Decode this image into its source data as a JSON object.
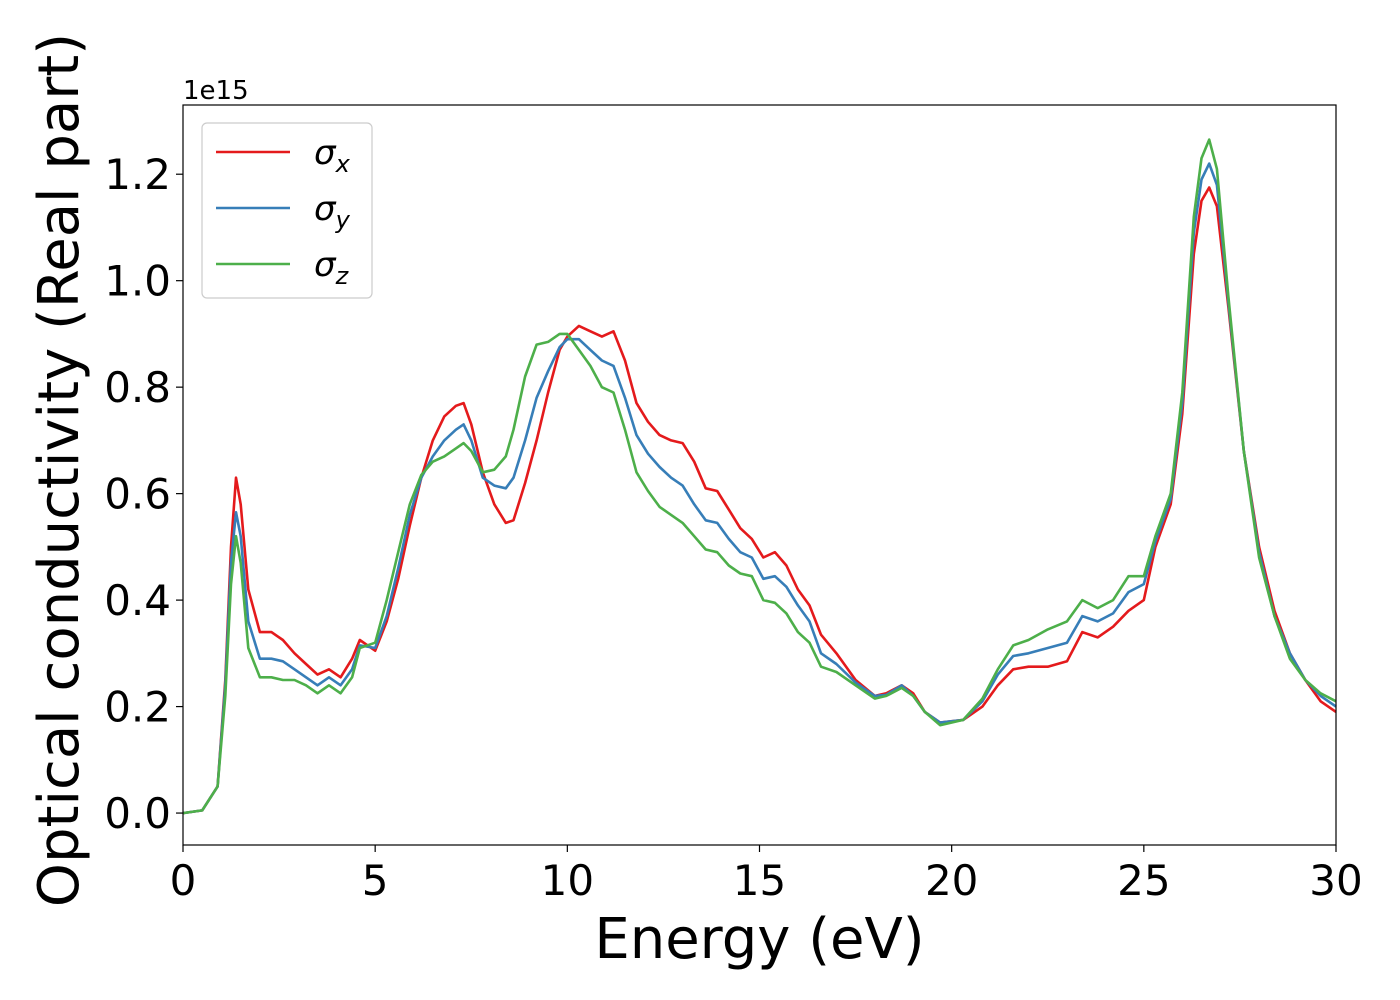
{
  "chart_data": {
    "type": "line",
    "xlabel": "Energy (eV)",
    "ylabel": "Optical conductivity (Real part)",
    "y_offset_label": "1e15",
    "xlim": [
      0,
      30
    ],
    "ylim": [
      -0.06,
      1.33
    ],
    "xticks": [
      0,
      5,
      10,
      15,
      20,
      25,
      30
    ],
    "yticks": [
      0.0,
      0.2,
      0.4,
      0.6,
      0.8,
      1.0,
      1.2
    ],
    "grid": false,
    "legend_position": "top-left",
    "series": [
      {
        "name": "σx",
        "color": "#e41a1c",
        "points": [
          [
            0,
            0
          ],
          [
            0.5,
            0.005
          ],
          [
            0.9,
            0.05
          ],
          [
            1.1,
            0.25
          ],
          [
            1.25,
            0.5
          ],
          [
            1.38,
            0.63
          ],
          [
            1.5,
            0.58
          ],
          [
            1.7,
            0.42
          ],
          [
            2.0,
            0.34
          ],
          [
            2.3,
            0.34
          ],
          [
            2.6,
            0.325
          ],
          [
            2.9,
            0.3
          ],
          [
            3.2,
            0.28
          ],
          [
            3.5,
            0.26
          ],
          [
            3.8,
            0.27
          ],
          [
            4.1,
            0.255
          ],
          [
            4.4,
            0.29
          ],
          [
            4.6,
            0.325
          ],
          [
            5.0,
            0.305
          ],
          [
            5.3,
            0.36
          ],
          [
            5.6,
            0.44
          ],
          [
            5.9,
            0.54
          ],
          [
            6.2,
            0.63
          ],
          [
            6.5,
            0.7
          ],
          [
            6.8,
            0.745
          ],
          [
            7.1,
            0.765
          ],
          [
            7.3,
            0.77
          ],
          [
            7.5,
            0.73
          ],
          [
            7.8,
            0.64
          ],
          [
            8.1,
            0.58
          ],
          [
            8.4,
            0.545
          ],
          [
            8.6,
            0.55
          ],
          [
            8.9,
            0.62
          ],
          [
            9.2,
            0.7
          ],
          [
            9.5,
            0.79
          ],
          [
            9.8,
            0.87
          ],
          [
            10.0,
            0.895
          ],
          [
            10.3,
            0.915
          ],
          [
            10.6,
            0.905
          ],
          [
            10.9,
            0.895
          ],
          [
            11.2,
            0.905
          ],
          [
            11.5,
            0.85
          ],
          [
            11.8,
            0.77
          ],
          [
            12.1,
            0.735
          ],
          [
            12.4,
            0.71
          ],
          [
            12.7,
            0.7
          ],
          [
            13.0,
            0.695
          ],
          [
            13.3,
            0.66
          ],
          [
            13.6,
            0.61
          ],
          [
            13.9,
            0.605
          ],
          [
            14.2,
            0.57
          ],
          [
            14.5,
            0.535
          ],
          [
            14.8,
            0.515
          ],
          [
            15.1,
            0.48
          ],
          [
            15.4,
            0.49
          ],
          [
            15.7,
            0.465
          ],
          [
            16.0,
            0.42
          ],
          [
            16.3,
            0.39
          ],
          [
            16.6,
            0.335
          ],
          [
            17.0,
            0.3
          ],
          [
            17.5,
            0.25
          ],
          [
            18.0,
            0.22
          ],
          [
            18.3,
            0.225
          ],
          [
            18.7,
            0.24
          ],
          [
            19.0,
            0.225
          ],
          [
            19.3,
            0.19
          ],
          [
            19.7,
            0.17
          ],
          [
            20.3,
            0.175
          ],
          [
            20.8,
            0.2
          ],
          [
            21.2,
            0.24
          ],
          [
            21.6,
            0.27
          ],
          [
            22.0,
            0.275
          ],
          [
            22.5,
            0.275
          ],
          [
            23.0,
            0.285
          ],
          [
            23.4,
            0.34
          ],
          [
            23.8,
            0.33
          ],
          [
            24.2,
            0.35
          ],
          [
            24.6,
            0.38
          ],
          [
            25.0,
            0.4
          ],
          [
            25.3,
            0.5
          ],
          [
            25.7,
            0.58
          ],
          [
            26.0,
            0.75
          ],
          [
            26.3,
            1.05
          ],
          [
            26.5,
            1.15
          ],
          [
            26.7,
            1.175
          ],
          [
            26.9,
            1.14
          ],
          [
            27.2,
            0.95
          ],
          [
            27.6,
            0.68
          ],
          [
            28.0,
            0.5
          ],
          [
            28.4,
            0.38
          ],
          [
            28.8,
            0.3
          ],
          [
            29.2,
            0.25
          ],
          [
            29.6,
            0.21
          ],
          [
            30.0,
            0.19
          ]
        ]
      },
      {
        "name": "σy",
        "color": "#377eb8",
        "points": [
          [
            0,
            0
          ],
          [
            0.5,
            0.005
          ],
          [
            0.9,
            0.05
          ],
          [
            1.1,
            0.24
          ],
          [
            1.25,
            0.47
          ],
          [
            1.38,
            0.565
          ],
          [
            1.5,
            0.52
          ],
          [
            1.7,
            0.36
          ],
          [
            2.0,
            0.29
          ],
          [
            2.3,
            0.29
          ],
          [
            2.6,
            0.285
          ],
          [
            2.9,
            0.27
          ],
          [
            3.2,
            0.255
          ],
          [
            3.5,
            0.24
          ],
          [
            3.8,
            0.255
          ],
          [
            4.1,
            0.24
          ],
          [
            4.4,
            0.27
          ],
          [
            4.6,
            0.315
          ],
          [
            5.0,
            0.31
          ],
          [
            5.3,
            0.37
          ],
          [
            5.6,
            0.46
          ],
          [
            5.9,
            0.56
          ],
          [
            6.2,
            0.63
          ],
          [
            6.5,
            0.67
          ],
          [
            6.8,
            0.7
          ],
          [
            7.1,
            0.72
          ],
          [
            7.3,
            0.73
          ],
          [
            7.5,
            0.7
          ],
          [
            7.8,
            0.63
          ],
          [
            8.1,
            0.615
          ],
          [
            8.4,
            0.61
          ],
          [
            8.6,
            0.63
          ],
          [
            8.9,
            0.7
          ],
          [
            9.2,
            0.78
          ],
          [
            9.5,
            0.83
          ],
          [
            9.8,
            0.875
          ],
          [
            10.0,
            0.89
          ],
          [
            10.3,
            0.89
          ],
          [
            10.6,
            0.87
          ],
          [
            10.9,
            0.85
          ],
          [
            11.2,
            0.84
          ],
          [
            11.5,
            0.78
          ],
          [
            11.8,
            0.71
          ],
          [
            12.1,
            0.675
          ],
          [
            12.4,
            0.65
          ],
          [
            12.7,
            0.63
          ],
          [
            13.0,
            0.615
          ],
          [
            13.3,
            0.58
          ],
          [
            13.6,
            0.55
          ],
          [
            13.9,
            0.545
          ],
          [
            14.2,
            0.515
          ],
          [
            14.5,
            0.49
          ],
          [
            14.8,
            0.48
          ],
          [
            15.1,
            0.44
          ],
          [
            15.4,
            0.445
          ],
          [
            15.7,
            0.425
          ],
          [
            16.0,
            0.39
          ],
          [
            16.3,
            0.36
          ],
          [
            16.6,
            0.3
          ],
          [
            17.0,
            0.28
          ],
          [
            17.5,
            0.245
          ],
          [
            18.0,
            0.22
          ],
          [
            18.3,
            0.222
          ],
          [
            18.7,
            0.24
          ],
          [
            19.0,
            0.22
          ],
          [
            19.3,
            0.19
          ],
          [
            19.7,
            0.17
          ],
          [
            20.3,
            0.175
          ],
          [
            20.8,
            0.21
          ],
          [
            21.2,
            0.26
          ],
          [
            21.6,
            0.295
          ],
          [
            22.0,
            0.3
          ],
          [
            22.5,
            0.31
          ],
          [
            23.0,
            0.32
          ],
          [
            23.4,
            0.37
          ],
          [
            23.8,
            0.36
          ],
          [
            24.2,
            0.375
          ],
          [
            24.6,
            0.415
          ],
          [
            25.0,
            0.43
          ],
          [
            25.3,
            0.51
          ],
          [
            25.7,
            0.59
          ],
          [
            26.0,
            0.77
          ],
          [
            26.3,
            1.09
          ],
          [
            26.5,
            1.19
          ],
          [
            26.7,
            1.22
          ],
          [
            26.9,
            1.18
          ],
          [
            27.2,
            0.96
          ],
          [
            27.6,
            0.68
          ],
          [
            28.0,
            0.49
          ],
          [
            28.4,
            0.37
          ],
          [
            28.8,
            0.3
          ],
          [
            29.2,
            0.25
          ],
          [
            29.6,
            0.22
          ],
          [
            30.0,
            0.2
          ]
        ]
      },
      {
        "name": "σz",
        "color": "#4daf4a",
        "points": [
          [
            0,
            0
          ],
          [
            0.5,
            0.005
          ],
          [
            0.9,
            0.05
          ],
          [
            1.1,
            0.22
          ],
          [
            1.25,
            0.43
          ],
          [
            1.38,
            0.52
          ],
          [
            1.5,
            0.47
          ],
          [
            1.7,
            0.31
          ],
          [
            2.0,
            0.255
          ],
          [
            2.3,
            0.255
          ],
          [
            2.6,
            0.25
          ],
          [
            2.9,
            0.25
          ],
          [
            3.2,
            0.24
          ],
          [
            3.5,
            0.225
          ],
          [
            3.8,
            0.24
          ],
          [
            4.1,
            0.225
          ],
          [
            4.4,
            0.255
          ],
          [
            4.6,
            0.31
          ],
          [
            5.0,
            0.32
          ],
          [
            5.3,
            0.4
          ],
          [
            5.6,
            0.49
          ],
          [
            5.9,
            0.58
          ],
          [
            6.2,
            0.635
          ],
          [
            6.5,
            0.66
          ],
          [
            6.8,
            0.67
          ],
          [
            7.1,
            0.685
          ],
          [
            7.3,
            0.695
          ],
          [
            7.5,
            0.68
          ],
          [
            7.8,
            0.64
          ],
          [
            8.1,
            0.645
          ],
          [
            8.4,
            0.67
          ],
          [
            8.6,
            0.72
          ],
          [
            8.9,
            0.82
          ],
          [
            9.2,
            0.88
          ],
          [
            9.5,
            0.885
          ],
          [
            9.8,
            0.9
          ],
          [
            10.0,
            0.9
          ],
          [
            10.3,
            0.87
          ],
          [
            10.6,
            0.84
          ],
          [
            10.9,
            0.8
          ],
          [
            11.2,
            0.79
          ],
          [
            11.5,
            0.72
          ],
          [
            11.8,
            0.64
          ],
          [
            12.1,
            0.605
          ],
          [
            12.4,
            0.575
          ],
          [
            12.7,
            0.56
          ],
          [
            13.0,
            0.545
          ],
          [
            13.3,
            0.52
          ],
          [
            13.6,
            0.495
          ],
          [
            13.9,
            0.49
          ],
          [
            14.2,
            0.465
          ],
          [
            14.5,
            0.45
          ],
          [
            14.8,
            0.445
          ],
          [
            15.1,
            0.4
          ],
          [
            15.4,
            0.395
          ],
          [
            15.7,
            0.375
          ],
          [
            16.0,
            0.34
          ],
          [
            16.3,
            0.32
          ],
          [
            16.6,
            0.275
          ],
          [
            17.0,
            0.265
          ],
          [
            17.5,
            0.24
          ],
          [
            18.0,
            0.215
          ],
          [
            18.3,
            0.22
          ],
          [
            18.7,
            0.235
          ],
          [
            19.0,
            0.22
          ],
          [
            19.3,
            0.19
          ],
          [
            19.7,
            0.165
          ],
          [
            20.3,
            0.175
          ],
          [
            20.8,
            0.215
          ],
          [
            21.2,
            0.27
          ],
          [
            21.6,
            0.315
          ],
          [
            22.0,
            0.325
          ],
          [
            22.5,
            0.345
          ],
          [
            23.0,
            0.36
          ],
          [
            23.4,
            0.4
          ],
          [
            23.8,
            0.385
          ],
          [
            24.2,
            0.4
          ],
          [
            24.6,
            0.445
          ],
          [
            25.0,
            0.445
          ],
          [
            25.3,
            0.52
          ],
          [
            25.7,
            0.6
          ],
          [
            26.0,
            0.79
          ],
          [
            26.3,
            1.12
          ],
          [
            26.5,
            1.23
          ],
          [
            26.7,
            1.265
          ],
          [
            26.9,
            1.21
          ],
          [
            27.2,
            0.97
          ],
          [
            27.6,
            0.68
          ],
          [
            28.0,
            0.48
          ],
          [
            28.4,
            0.37
          ],
          [
            28.8,
            0.29
          ],
          [
            29.2,
            0.25
          ],
          [
            29.6,
            0.225
          ],
          [
            30.0,
            0.21
          ]
        ]
      }
    ]
  }
}
